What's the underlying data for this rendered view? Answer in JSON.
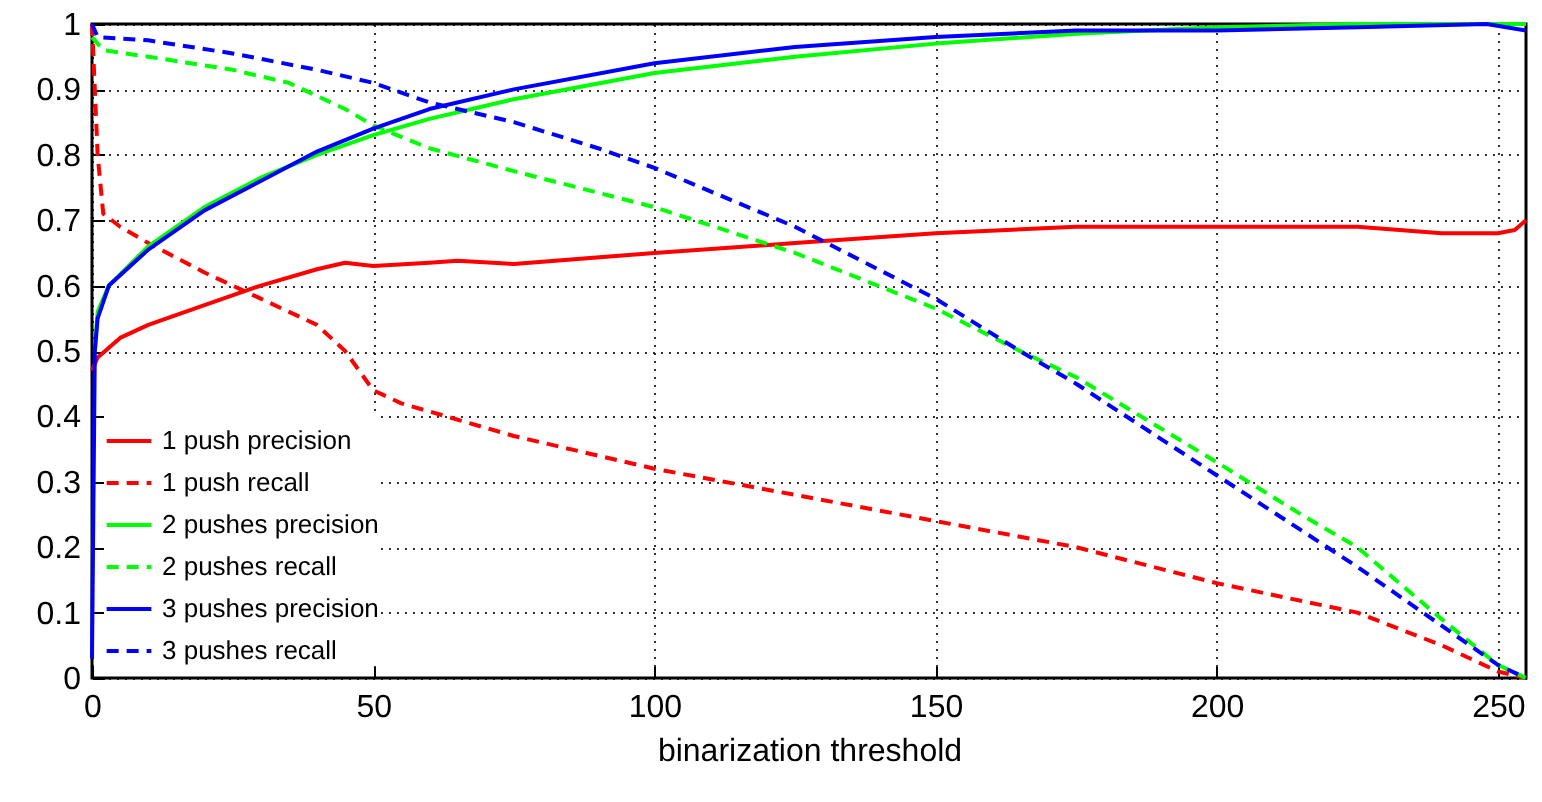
{
  "chart_data": {
    "type": "line",
    "xlabel": "binarization threshold",
    "xlim": [
      0,
      255
    ],
    "ylim": [
      0,
      1
    ],
    "xticks": [
      0,
      50,
      100,
      150,
      200,
      250
    ],
    "yticks": [
      0,
      0.1,
      0.2,
      0.3,
      0.4,
      0.5,
      0.6,
      0.7,
      0.8,
      0.9,
      1
    ],
    "grid": true,
    "legend": "bottom left",
    "marker": "none",
    "series": [
      {
        "name": "1 push precision",
        "color": "#ff0000",
        "line_style": "solid",
        "x": [
          0,
          1,
          5,
          10,
          20,
          30,
          40,
          45,
          50,
          60,
          65,
          75,
          100,
          125,
          150,
          175,
          200,
          225,
          240,
          250,
          253,
          255
        ],
        "values": [
          0.47,
          0.49,
          0.52,
          0.54,
          0.57,
          0.6,
          0.625,
          0.635,
          0.63,
          0.635,
          0.638,
          0.633,
          0.65,
          0.665,
          0.68,
          0.69,
          0.69,
          0.69,
          0.68,
          0.68,
          0.685,
          0.7
        ]
      },
      {
        "name": "1 push recall",
        "color": "#ff0000",
        "line_style": "dashed",
        "x": [
          0,
          1,
          2,
          5,
          10,
          20,
          30,
          40,
          45,
          50,
          55,
          75,
          100,
          125,
          150,
          175,
          200,
          225,
          240,
          250,
          255
        ],
        "values": [
          1,
          0.8,
          0.71,
          0.69,
          0.665,
          0.62,
          0.58,
          0.54,
          0.5,
          0.44,
          0.42,
          0.37,
          0.32,
          0.28,
          0.24,
          0.2,
          0.145,
          0.1,
          0.05,
          0.01,
          0
        ]
      },
      {
        "name": "2 pushes precision",
        "color": "#00ff00",
        "line_style": "solid",
        "x": [
          0.5,
          1,
          3,
          10,
          20,
          30,
          40,
          50,
          60,
          75,
          100,
          125,
          150,
          175,
          200,
          225,
          255
        ],
        "values": [
          0.5,
          0.56,
          0.6,
          0.66,
          0.72,
          0.765,
          0.8,
          0.83,
          0.855,
          0.885,
          0.925,
          0.95,
          0.97,
          0.985,
          0.995,
          1,
          1
        ]
      },
      {
        "name": "2 pushes recall",
        "color": "#00ff00",
        "line_style": "dashed",
        "x": [
          0,
          2,
          10,
          25,
          35,
          45,
          50,
          60,
          75,
          100,
          125,
          150,
          165,
          175,
          200,
          215,
          225,
          240,
          250,
          255
        ],
        "values": [
          0.98,
          0.96,
          0.95,
          0.93,
          0.91,
          0.87,
          0.845,
          0.81,
          0.775,
          0.72,
          0.65,
          0.565,
          0.5,
          0.46,
          0.33,
          0.25,
          0.2,
          0.09,
          0.02,
          0
        ]
      },
      {
        "name": "3 pushes precision",
        "color": "#0000ff",
        "line_style": "solid",
        "x": [
          0,
          0.5,
          1,
          3,
          10,
          20,
          30,
          40,
          50,
          60,
          75,
          100,
          125,
          150,
          175,
          200,
          225,
          248,
          255
        ],
        "values": [
          0.03,
          0.5,
          0.55,
          0.6,
          0.655,
          0.715,
          0.76,
          0.805,
          0.84,
          0.87,
          0.9,
          0.94,
          0.965,
          0.98,
          0.99,
          0.99,
          0.995,
          1,
          0.99
        ]
      },
      {
        "name": "3 pushes recall",
        "color": "#0000ff",
        "line_style": "dashed",
        "x": [
          0,
          1,
          10,
          25,
          40,
          50,
          60,
          75,
          90,
          100,
          125,
          150,
          165,
          175,
          200,
          225,
          240,
          250,
          255
        ],
        "values": [
          1,
          0.98,
          0.975,
          0.955,
          0.93,
          0.91,
          0.88,
          0.85,
          0.81,
          0.78,
          0.69,
          0.58,
          0.5,
          0.45,
          0.31,
          0.17,
          0.08,
          0.02,
          0
        ]
      }
    ]
  }
}
